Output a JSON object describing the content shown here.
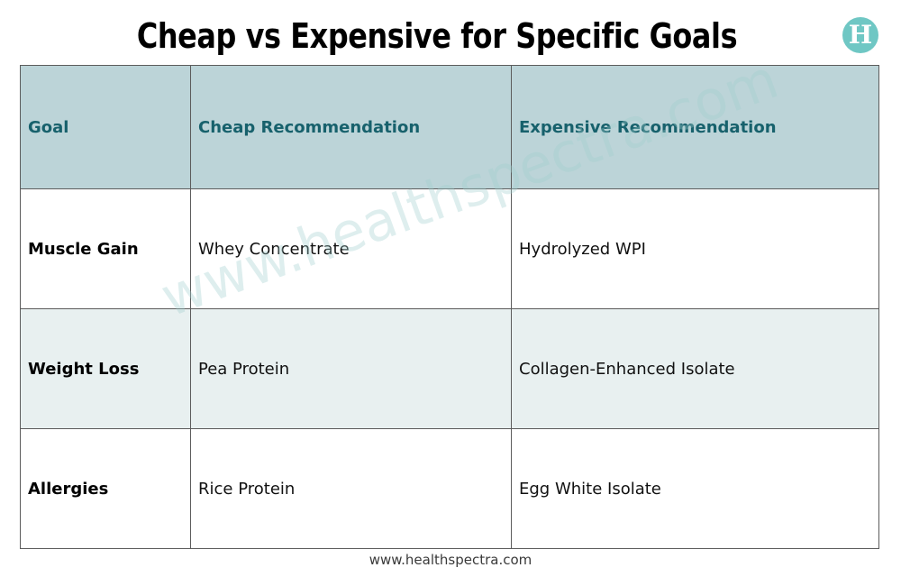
{
  "title": "Cheap vs Expensive for Specific Goals",
  "logo": {
    "letter": "H",
    "icon": "healthspectra-logo-icon",
    "color": "#6fc7c4"
  },
  "table": {
    "headers": [
      "Goal",
      "Cheap Recommendation",
      "Expensive Recommendation"
    ],
    "rows": [
      {
        "goal": "Muscle Gain",
        "cheap": "Whey Concentrate",
        "expensive": "Hydrolyzed WPI"
      },
      {
        "goal": "Weight Loss",
        "cheap": "Pea Protein",
        "expensive": "Collagen-Enhanced Isolate"
      },
      {
        "goal": "Allergies",
        "cheap": "Rice Protein",
        "expensive": "Egg White Isolate"
      }
    ],
    "colors": {
      "header_background": "#bcd4d8",
      "header_text": "#17616c",
      "shaded_row": "#e8f0f0"
    }
  },
  "watermark": "www.healthspectra.com",
  "footer": "www.healthspectra.com"
}
